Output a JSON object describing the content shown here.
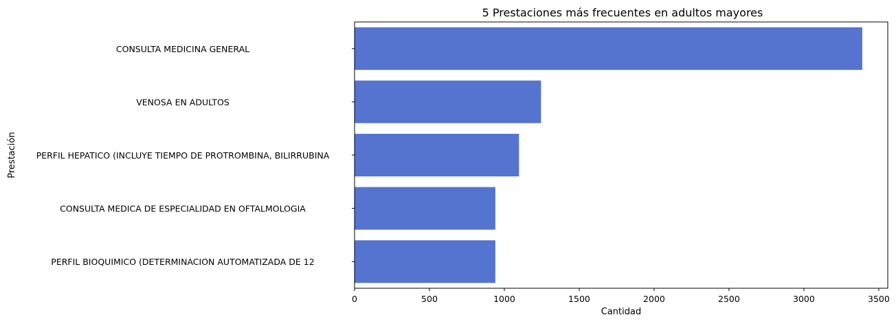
{
  "chart_data": {
    "type": "bar",
    "orientation": "horizontal",
    "title": "5 Prestaciones más frecuentes en adultos mayores",
    "xlabel": "Cantidad",
    "ylabel": "Prestación",
    "categories": [
      "CONSULTA MEDICINA GENERAL",
      "VENOSA EN ADULTOS",
      "PERFIL HEPATICO (INCLUYE TIEMPO DE PROTROMBINA, BILIRRUBINA",
      "CONSULTA MEDICA DE ESPECIALIDAD EN OFTALMOLOGIA",
      "PERFIL BIOQUIMICO (DETERMINACION AUTOMATIZADA DE 12"
    ],
    "values": [
      3390,
      1245,
      1098,
      940,
      940
    ],
    "xlim": [
      0,
      3560
    ],
    "xticks": [
      0,
      500,
      1000,
      1500,
      2000,
      2500,
      3000,
      3500
    ],
    "bar_color": "#5474d0",
    "grid": false,
    "legend": "none"
  }
}
